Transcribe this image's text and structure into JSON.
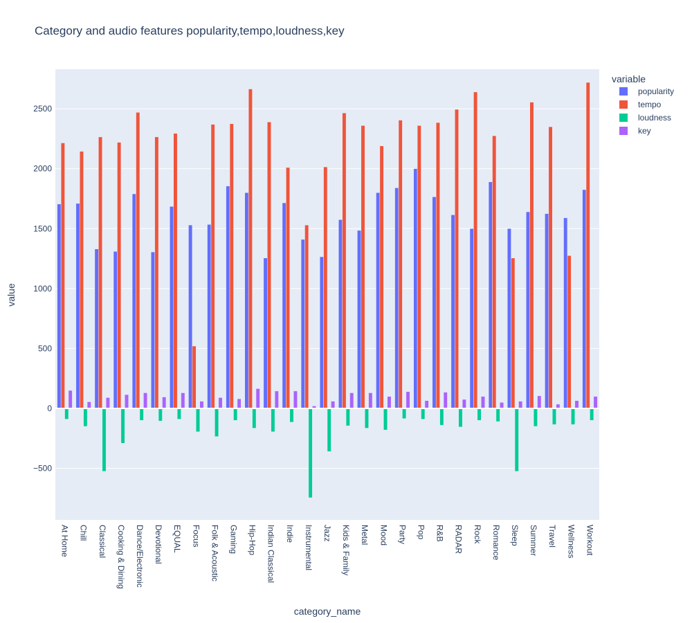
{
  "chart_data": {
    "type": "bar",
    "barmode": "group",
    "title": "Category and audio features popularity,tempo,loudness,key",
    "xlabel": "category_name",
    "ylabel": "value",
    "ylim": [
      -930,
      2830
    ],
    "yticks": [
      -500,
      0,
      500,
      1000,
      1500,
      2000,
      2500
    ],
    "ytick_labels": [
      "−500",
      "0",
      "500",
      "1000",
      "1500",
      "2000",
      "2500"
    ],
    "grid": true,
    "legend_title": "variable",
    "legend_position": "top-right",
    "categories": [
      "At Home",
      "Chill",
      "Classical",
      "Cooking & Dining",
      "Dance/Electronic",
      "Devotional",
      "EQUAL",
      "Focus",
      "Folk & Acoustic",
      "Gaming",
      "Hip-Hop",
      "Indian Classical",
      "Indie",
      "Instrumental",
      "Jazz",
      "Kids & Family",
      "Metal",
      "Mood",
      "Party",
      "Pop",
      "R&B",
      "RADAR",
      "Rock",
      "Romance",
      "Sleep",
      "Summer",
      "Travel",
      "Wellness",
      "Workout"
    ],
    "series": [
      {
        "name": "popularity",
        "color": "#636efa",
        "values": [
          1705,
          1710,
          1330,
          1310,
          1790,
          1305,
          1685,
          1530,
          1535,
          1855,
          1800,
          1255,
          1715,
          1410,
          1265,
          1575,
          1485,
          1800,
          1840,
          2000,
          1765,
          1615,
          1500,
          1890,
          1500,
          1640,
          1625,
          1590,
          1825
        ]
      },
      {
        "name": "tempo",
        "color": "#ef553b",
        "values": [
          2215,
          2145,
          2265,
          2220,
          2470,
          2265,
          2295,
          520,
          2370,
          2375,
          2665,
          2390,
          2010,
          1530,
          2015,
          2465,
          2360,
          2190,
          2405,
          2360,
          2385,
          2495,
          2640,
          2275,
          1255,
          2555,
          2350,
          1275,
          2720
        ]
      },
      {
        "name": "loudness",
        "color": "#00cc96",
        "values": [
          -90,
          -150,
          -525,
          -290,
          -100,
          -105,
          -90,
          -195,
          -235,
          -100,
          -165,
          -195,
          -115,
          -745,
          -360,
          -145,
          -165,
          -180,
          -85,
          -90,
          -140,
          -155,
          -100,
          -110,
          -525,
          -150,
          -135,
          -135,
          -100
        ]
      },
      {
        "name": "key",
        "color": "#ab63fa",
        "values": [
          150,
          55,
          90,
          115,
          130,
          95,
          130,
          60,
          90,
          80,
          165,
          145,
          145,
          20,
          60,
          130,
          130,
          100,
          140,
          65,
          135,
          75,
          100,
          50,
          60,
          105,
          35,
          65,
          100
        ]
      }
    ]
  }
}
